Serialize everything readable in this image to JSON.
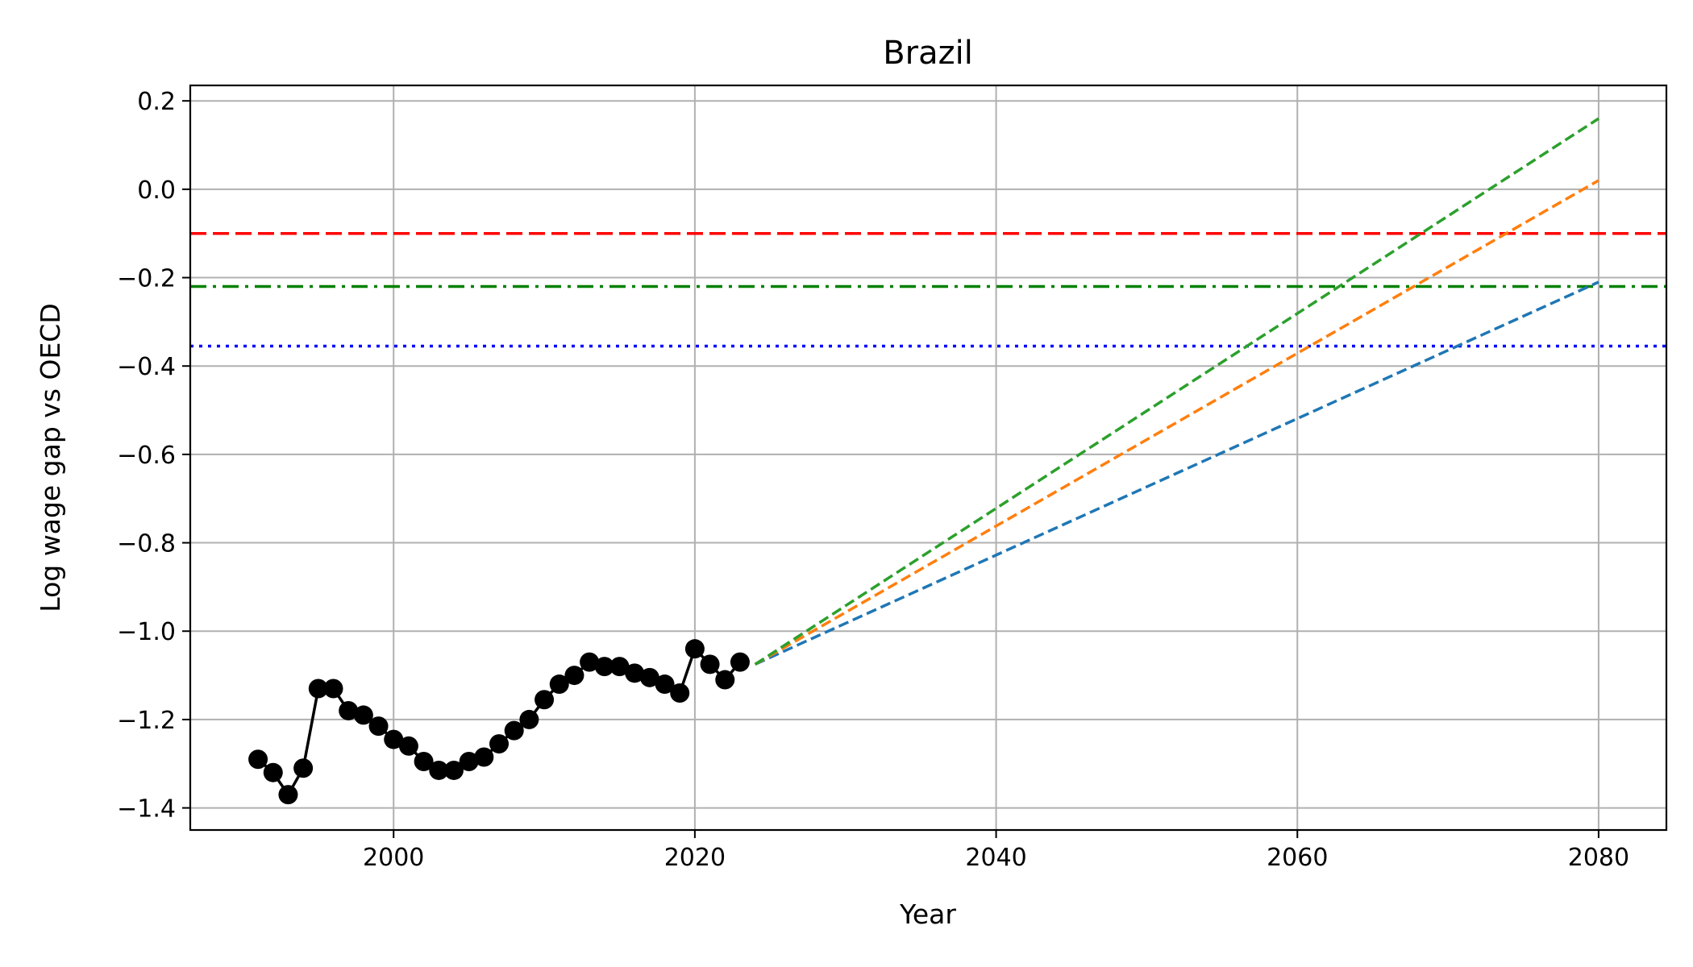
{
  "chart_data": {
    "type": "line",
    "title": "Brazil",
    "xlabel": "Year",
    "ylabel": "Log wage gap vs OECD",
    "xlim": [
      1986.5,
      2084.5
    ],
    "ylim": [
      -1.45,
      0.235
    ],
    "xticks": [
      2000,
      2020,
      2040,
      2060,
      2080
    ],
    "yticks": [
      0.2,
      0.0,
      -0.2,
      -0.4,
      -0.6,
      -0.8,
      -1.0,
      -1.2,
      -1.4
    ],
    "xtick_labels": [
      "2000",
      "2020",
      "2040",
      "2060",
      "2080"
    ],
    "ytick_labels": [
      "0.2",
      "0.0",
      "−0.2",
      "−0.4",
      "−0.6",
      "−0.8",
      "−1.0",
      "−1.2",
      "−1.4"
    ],
    "grid": true,
    "historical": {
      "color": "#000000",
      "x": [
        1991,
        1992,
        1993,
        1994,
        1995,
        1996,
        1997,
        1998,
        1999,
        2000,
        2001,
        2002,
        2003,
        2004,
        2005,
        2006,
        2007,
        2008,
        2009,
        2010,
        2011,
        2012,
        2013,
        2014,
        2015,
        2016,
        2017,
        2018,
        2019,
        2020,
        2021,
        2022,
        2023
      ],
      "y": [
        -1.29,
        -1.32,
        -1.37,
        -1.31,
        -1.13,
        -1.13,
        -1.18,
        -1.19,
        -1.215,
        -1.245,
        -1.26,
        -1.295,
        -1.315,
        -1.315,
        -1.295,
        -1.285,
        -1.255,
        -1.225,
        -1.2,
        -1.155,
        -1.12,
        -1.1,
        -1.07,
        -1.08,
        -1.08,
        -1.095,
        -1.105,
        -1.12,
        -1.14,
        -1.04,
        -1.075,
        -1.11,
        -1.07
      ]
    },
    "projections": [
      {
        "color": "#1f77b4",
        "x": [
          2024,
          2080
        ],
        "y": [
          -1.075,
          -0.21
        ]
      },
      {
        "color": "#ff7f0e",
        "x": [
          2024,
          2080
        ],
        "y": [
          -1.075,
          0.02
        ]
      },
      {
        "color": "#2ca02c",
        "x": [
          2024,
          2080
        ],
        "y": [
          -1.075,
          0.16
        ]
      }
    ],
    "reference_lines": [
      {
        "y": -0.1,
        "color": "#ff0000",
        "style": "dashed"
      },
      {
        "y": -0.22,
        "color": "#008000",
        "style": "dashdot"
      },
      {
        "y": -0.355,
        "color": "#0000ff",
        "style": "dotted"
      }
    ]
  }
}
